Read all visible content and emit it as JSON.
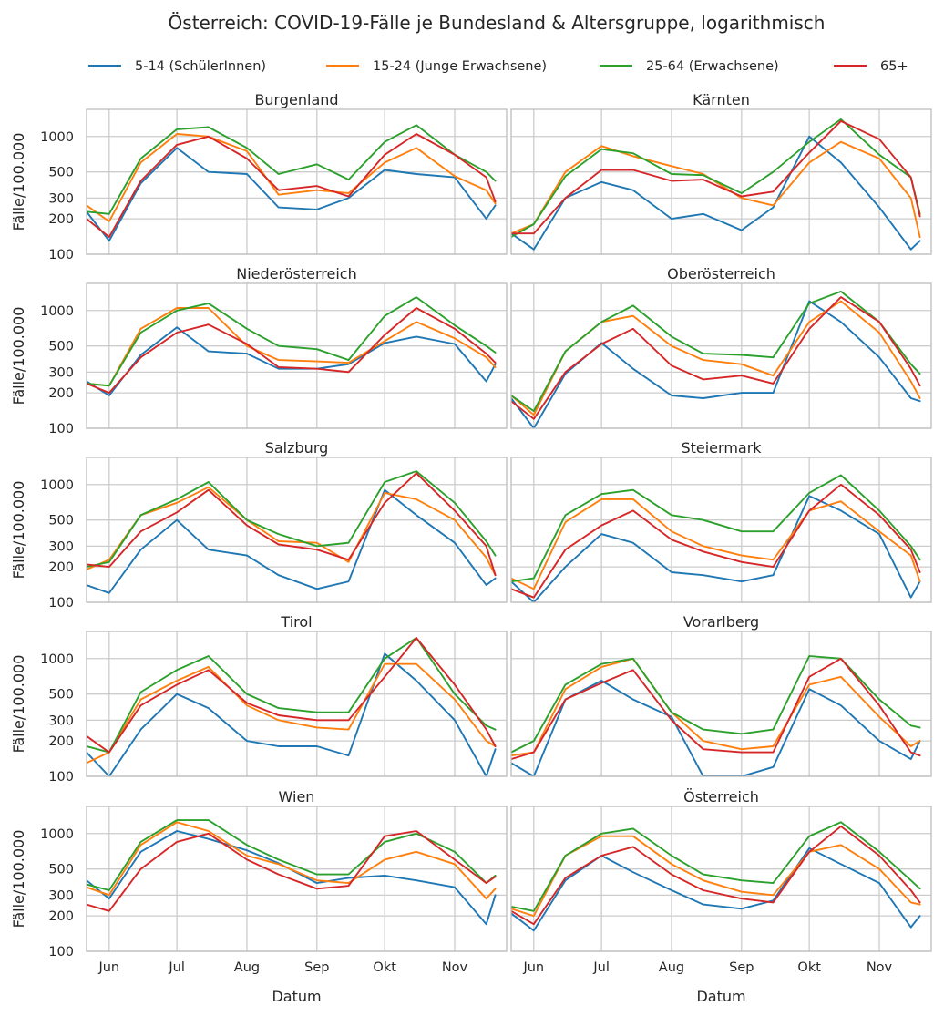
{
  "chart_data": {
    "type": "line",
    "title": "Österreich: COVID-19-Fälle je Bundesland & Altersgruppe, logarithmisch",
    "xlabel": "Datum",
    "ylabel": "Fälle/100.000",
    "yscale": "log",
    "ylim": [
      100,
      1700
    ],
    "yticks": [
      100,
      200,
      300,
      500,
      1000
    ],
    "ytick_labels": [
      "100",
      "200",
      "300",
      "500",
      "1000"
    ],
    "xticks": [
      "Jun",
      "Jul",
      "Aug",
      "Sep",
      "Okt",
      "Nov"
    ],
    "x": [
      "Mai-22",
      "Jun",
      "Jun-15",
      "Jul",
      "Jul-15",
      "Aug",
      "Aug-15",
      "Sep",
      "Sep-15",
      "Okt",
      "Okt-15",
      "Nov",
      "Nov-15",
      "Nov-19"
    ],
    "grid": true,
    "legend_position": "top",
    "series_legend": [
      {
        "name": "5-14 (SchülerInnen)",
        "color": "#1f77b4"
      },
      {
        "name": "15-24 (Junge Erwachsene)",
        "color": "#ff7f0e"
      },
      {
        "name": "25-64 (Erwachsene)",
        "color": "#2ca02c"
      },
      {
        "name": "65+",
        "color": "#d62728"
      }
    ],
    "panels": [
      {
        "title": "Burgenland",
        "series": [
          [
            230,
            130,
            400,
            800,
            500,
            480,
            250,
            240,
            300,
            520,
            480,
            450,
            200,
            260
          ],
          [
            260,
            190,
            600,
            1050,
            1000,
            750,
            320,
            350,
            330,
            600,
            800,
            460,
            350,
            270
          ],
          [
            230,
            220,
            650,
            1150,
            1200,
            800,
            480,
            580,
            430,
            900,
            1250,
            700,
            500,
            420
          ],
          [
            200,
            140,
            420,
            850,
            1000,
            650,
            350,
            380,
            310,
            700,
            1050,
            700,
            450,
            280
          ]
        ]
      },
      {
        "title": "Kärnten",
        "series": [
          [
            150,
            110,
            300,
            410,
            350,
            200,
            220,
            160,
            250,
            1000,
            600,
            250,
            110,
            130
          ],
          [
            150,
            180,
            500,
            830,
            680,
            560,
            480,
            300,
            260,
            600,
            900,
            650,
            300,
            140
          ],
          [
            140,
            180,
            460,
            780,
            720,
            480,
            470,
            330,
            500,
            900,
            1400,
            700,
            450,
            220
          ],
          [
            150,
            150,
            300,
            520,
            520,
            420,
            430,
            310,
            340,
            730,
            1350,
            950,
            450,
            210
          ]
        ]
      },
      {
        "title": "Niederösterreich",
        "series": [
          [
            250,
            190,
            420,
            720,
            450,
            430,
            320,
            320,
            350,
            530,
            600,
            520,
            250,
            350
          ],
          [
            240,
            230,
            700,
            1050,
            1050,
            500,
            380,
            370,
            360,
            550,
            800,
            580,
            400,
            330
          ],
          [
            240,
            230,
            650,
            1000,
            1150,
            700,
            500,
            470,
            380,
            900,
            1300,
            750,
            500,
            440
          ],
          [
            240,
            200,
            400,
            650,
            760,
            520,
            330,
            320,
            300,
            620,
            1050,
            700,
            430,
            360
          ]
        ]
      },
      {
        "title": "Oberösterreich",
        "series": [
          [
            180,
            100,
            290,
            530,
            320,
            190,
            180,
            200,
            200,
            1200,
            800,
            400,
            180,
            170
          ],
          [
            190,
            130,
            450,
            800,
            900,
            500,
            380,
            350,
            280,
            800,
            1200,
            650,
            250,
            180
          ],
          [
            190,
            140,
            450,
            800,
            1100,
            600,
            430,
            420,
            400,
            1150,
            1450,
            800,
            350,
            290
          ],
          [
            170,
            120,
            300,
            520,
            700,
            340,
            260,
            280,
            240,
            700,
            1300,
            800,
            320,
            230
          ]
        ]
      },
      {
        "title": "Salzburg",
        "series": [
          [
            140,
            120,
            280,
            500,
            280,
            250,
            170,
            130,
            150,
            900,
            550,
            320,
            140,
            160
          ],
          [
            190,
            230,
            550,
            700,
            950,
            500,
            330,
            320,
            220,
            850,
            750,
            500,
            240,
            170
          ],
          [
            200,
            220,
            550,
            750,
            1050,
            500,
            380,
            300,
            320,
            1050,
            1300,
            700,
            330,
            250
          ],
          [
            210,
            200,
            400,
            580,
            900,
            450,
            310,
            280,
            230,
            700,
            1250,
            600,
            300,
            170
          ]
        ]
      },
      {
        "title": "Steiermark",
        "series": [
          [
            150,
            100,
            200,
            380,
            320,
            180,
            170,
            150,
            170,
            800,
            600,
            380,
            110,
            150
          ],
          [
            160,
            130,
            480,
            750,
            750,
            400,
            300,
            250,
            230,
            600,
            720,
            400,
            250,
            150
          ],
          [
            150,
            160,
            550,
            830,
            900,
            550,
            500,
            400,
            400,
            850,
            1200,
            600,
            300,
            230
          ],
          [
            130,
            110,
            280,
            450,
            600,
            340,
            270,
            220,
            200,
            600,
            1000,
            550,
            280,
            180
          ]
        ]
      },
      {
        "title": "Tirol",
        "series": [
          [
            160,
            100,
            250,
            500,
            380,
            200,
            180,
            180,
            150,
            1100,
            650,
            300,
            100,
            170
          ],
          [
            130,
            160,
            450,
            650,
            850,
            400,
            300,
            260,
            250,
            900,
            900,
            450,
            200,
            180
          ],
          [
            180,
            160,
            520,
            800,
            1050,
            500,
            380,
            350,
            350,
            1000,
            1500,
            500,
            270,
            250
          ],
          [
            220,
            160,
            400,
            600,
            800,
            420,
            330,
            300,
            300,
            700,
            1500,
            600,
            250,
            180
          ]
        ]
      },
      {
        "title": "Vorarlberg",
        "series": [
          [
            130,
            100,
            450,
            650,
            450,
            320,
            100,
            100,
            120,
            550,
            400,
            200,
            140,
            200
          ],
          [
            150,
            160,
            550,
            850,
            1000,
            350,
            200,
            170,
            180,
            600,
            700,
            320,
            180,
            200
          ],
          [
            160,
            200,
            600,
            900,
            1000,
            350,
            250,
            230,
            250,
            1050,
            1000,
            450,
            270,
            260
          ],
          [
            140,
            160,
            450,
            620,
            800,
            300,
            170,
            160,
            160,
            700,
            1000,
            400,
            160,
            150
          ]
        ]
      },
      {
        "title": "Wien",
        "series": [
          [
            400,
            280,
            700,
            1050,
            900,
            720,
            560,
            380,
            420,
            440,
            400,
            350,
            170,
            300
          ],
          [
            350,
            300,
            800,
            1250,
            1050,
            650,
            550,
            400,
            380,
            600,
            700,
            550,
            280,
            340
          ],
          [
            370,
            330,
            850,
            1300,
            1300,
            800,
            600,
            450,
            450,
            850,
            1000,
            700,
            380,
            440
          ],
          [
            250,
            220,
            500,
            850,
            1000,
            600,
            450,
            340,
            360,
            950,
            1050,
            600,
            380,
            430
          ]
        ]
      },
      {
        "title": "Österreich",
        "series": [
          [
            210,
            150,
            400,
            650,
            470,
            330,
            250,
            230,
            270,
            750,
            550,
            380,
            160,
            200
          ],
          [
            230,
            200,
            650,
            950,
            950,
            550,
            400,
            320,
            300,
            700,
            800,
            500,
            260,
            250
          ],
          [
            240,
            220,
            650,
            1000,
            1100,
            650,
            450,
            400,
            380,
            950,
            1250,
            700,
            400,
            340
          ],
          [
            220,
            170,
            420,
            650,
            770,
            450,
            330,
            280,
            260,
            700,
            1150,
            650,
            330,
            260
          ]
        ]
      }
    ]
  }
}
